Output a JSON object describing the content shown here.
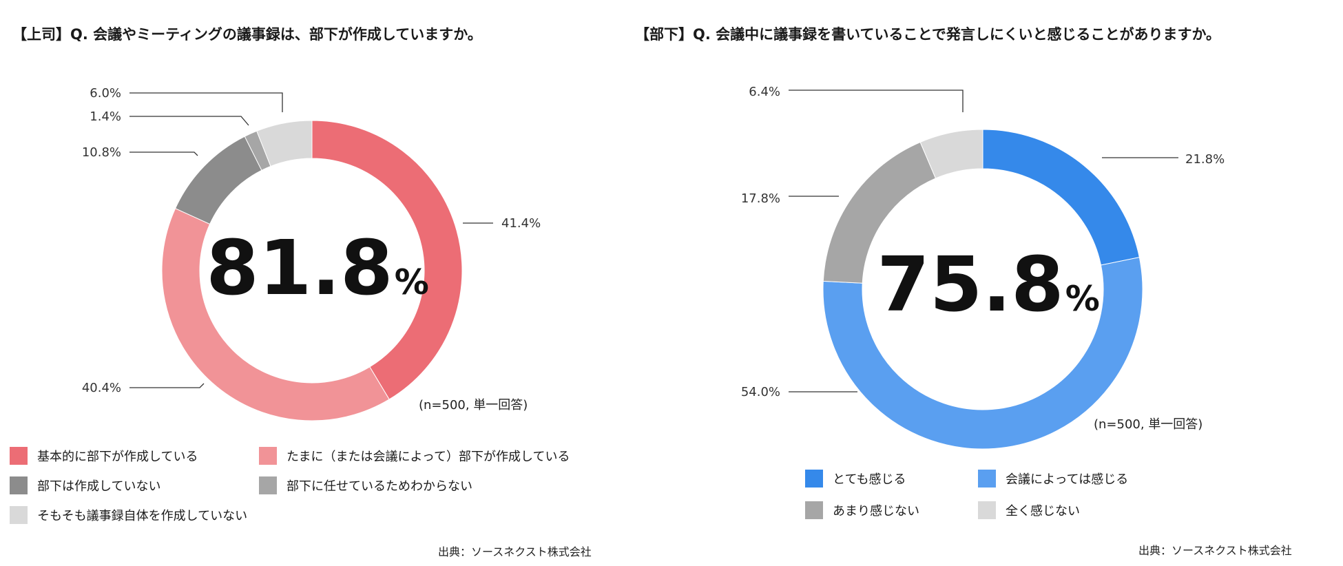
{
  "chart_data": [
    {
      "type": "pie",
      "title": "【上司】Q. 会議やミーティングの議事録は、部下が作成していますか。",
      "center_value": "81.8",
      "center_unit": "%",
      "note": "(n=500, 単一回答)",
      "source": "出典：ソースネクスト株式会社",
      "slices": [
        {
          "label": "基本的に部下が作成している",
          "value": 41.4,
          "display": "41.4%",
          "color": "#ec6d75"
        },
        {
          "label": "たまに（または会議によって）部下が作成している",
          "value": 40.4,
          "display": "40.4%",
          "color": "#f19397"
        },
        {
          "label": "部下は作成していない",
          "value": 10.8,
          "display": "10.8%",
          "color": "#8c8c8c"
        },
        {
          "label": "部下に任せているためわからない",
          "value": 1.4,
          "display": "1.4%",
          "color": "#a6a6a6"
        },
        {
          "label": "そもそも議事録自体を作成していない",
          "value": 6.0,
          "display": "6.0%",
          "color": "#d9d9d9"
        }
      ]
    },
    {
      "type": "pie",
      "title": "【部下】Q. 会議中に議事録を書いていることで発言しにくいと感じることがありますか。",
      "center_value": "75.8",
      "center_unit": "%",
      "note": "(n=500, 単一回答)",
      "source": "出典：ソースネクスト株式会社",
      "slices": [
        {
          "label": "とても感じる",
          "value": 21.8,
          "display": "21.8%",
          "color": "#3589ea"
        },
        {
          "label": "会議によっては感じる",
          "value": 54.0,
          "display": "54.0%",
          "color": "#5a9ff0"
        },
        {
          "label": "あまり感じない",
          "value": 17.8,
          "display": "17.8%",
          "color": "#a6a6a6"
        },
        {
          "label": "全く感じない",
          "value": 6.4,
          "display": "6.4%",
          "color": "#d9d9d9"
        }
      ]
    }
  ]
}
